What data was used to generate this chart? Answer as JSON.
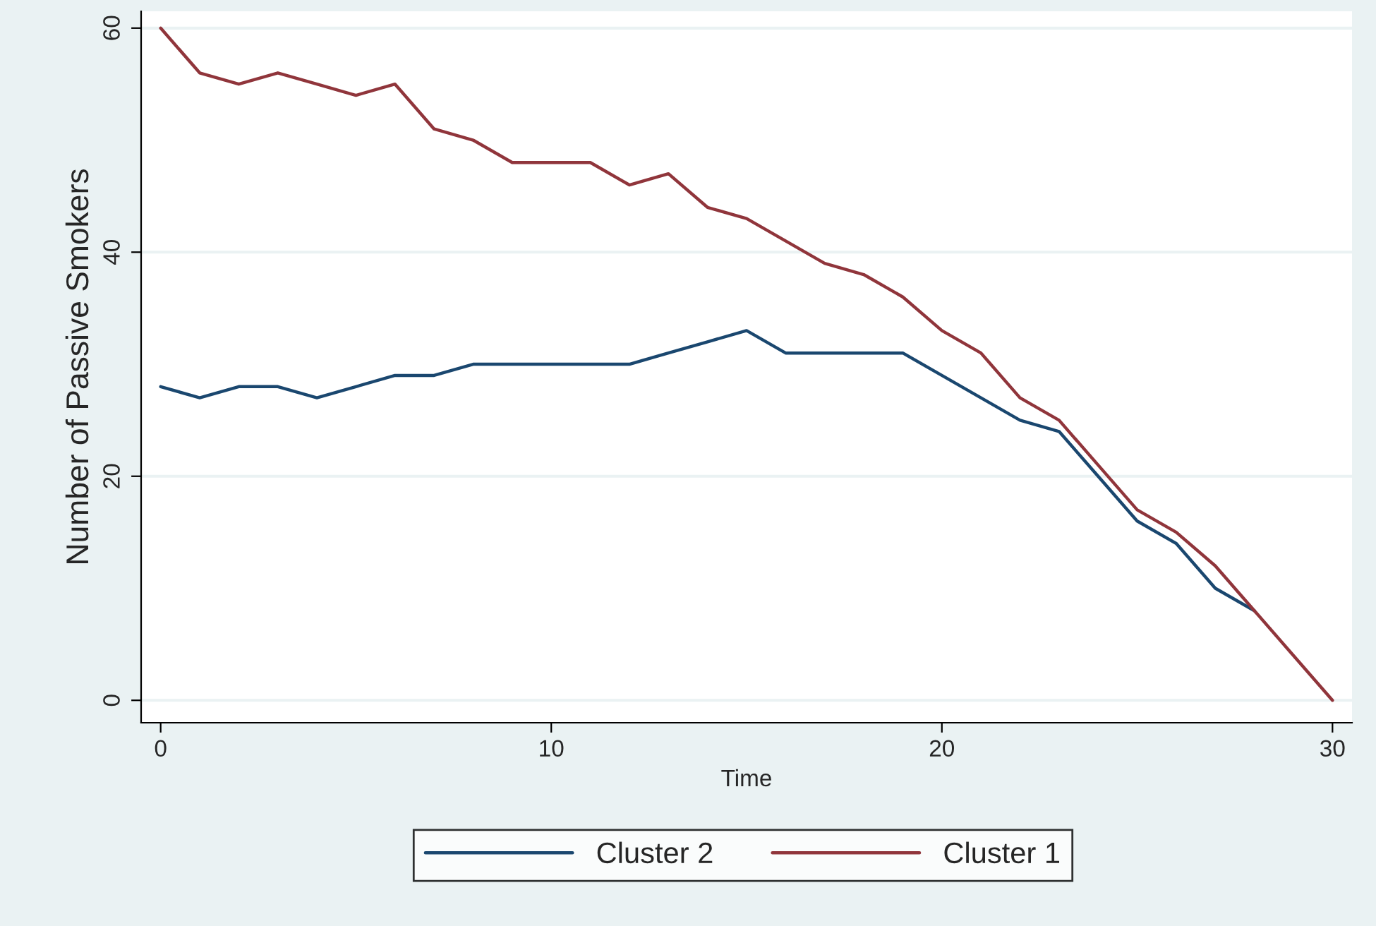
{
  "chart_data": {
    "type": "line",
    "xlabel": "Time",
    "ylabel": "Number of Passive Smokers",
    "x": [
      0,
      1,
      2,
      3,
      4,
      5,
      6,
      7,
      8,
      9,
      10,
      11,
      12,
      13,
      14,
      15,
      16,
      17,
      18,
      19,
      20,
      21,
      22,
      23,
      24,
      25,
      26,
      27,
      28,
      29,
      30
    ],
    "series": [
      {
        "name": "Cluster 2",
        "color": "#1a476f",
        "values": [
          28,
          27,
          28,
          28,
          27,
          28,
          29,
          29,
          30,
          30,
          30,
          30,
          30,
          31,
          32,
          33,
          31,
          31,
          31,
          31,
          29,
          27,
          25,
          24,
          20,
          16,
          14,
          10,
          8,
          null,
          null
        ]
      },
      {
        "name": "Cluster 1",
        "color": "#90353b",
        "values": [
          60,
          56,
          55,
          56,
          55,
          54,
          55,
          51,
          50,
          48,
          48,
          48,
          46,
          47,
          44,
          43,
          41,
          39,
          38,
          36,
          33,
          31,
          27,
          25,
          21,
          17,
          15,
          12,
          8,
          4,
          0
        ]
      }
    ],
    "xlim": [
      -0.5,
      30.5
    ],
    "xticks": [
      0,
      10,
      20,
      30
    ],
    "ylim": [
      -2,
      61.5
    ],
    "yticks": [
      0,
      20,
      40,
      60
    ],
    "grid": "y",
    "legend": "bottom",
    "marker": "none",
    "line_style": "solid"
  }
}
